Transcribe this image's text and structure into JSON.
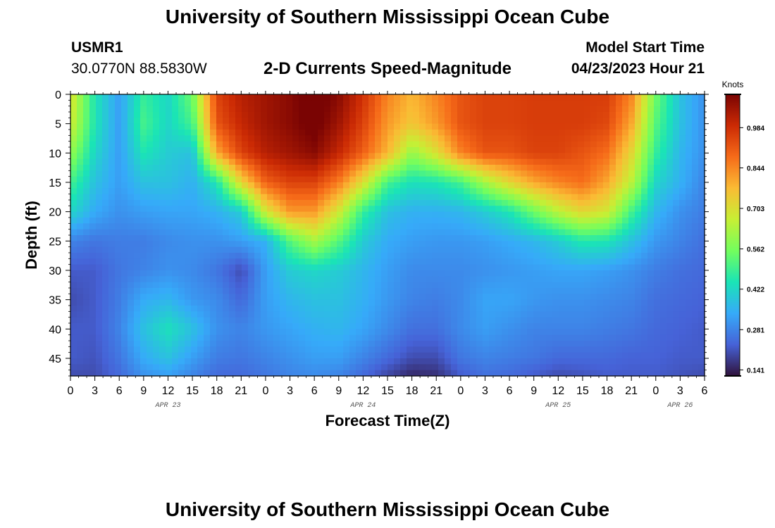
{
  "header": {
    "title": "University of Southern Mississippi Ocean Cube",
    "station_id": "USMR1",
    "station_location": "30.0770N  88.5830W",
    "chart_title": "2-D Currents Speed-Magnitude",
    "start_label": "Model Start Time",
    "start_value": "04/23/2023 Hour 21"
  },
  "footer": {
    "title": "University of Southern Mississippi Ocean Cube"
  },
  "chart_data": {
    "type": "heatmap",
    "title": "2-D Currents Speed-Magnitude",
    "xlabel": "Forecast Time(Z)",
    "ylabel": "Depth (ft)",
    "colorbar_label": "Knots",
    "x_hours_range": [
      0,
      78
    ],
    "ylim": [
      0,
      48
    ],
    "x_tick_labels": [
      "0",
      "3",
      "6",
      "9",
      "12",
      "15",
      "18",
      "21",
      "0",
      "3",
      "6",
      "9",
      "12",
      "15",
      "18",
      "21",
      "0",
      "3",
      "6",
      "9",
      "12",
      "15",
      "18",
      "21",
      "0",
      "3",
      "6"
    ],
    "y_ticks": [
      0,
      5,
      10,
      15,
      20,
      25,
      30,
      35,
      40,
      45
    ],
    "date_labels": [
      {
        "label": "APR 23",
        "hour": 12
      },
      {
        "label": "APR 24",
        "hour": 36
      },
      {
        "label": "APR 25",
        "hour": 60
      },
      {
        "label": "APR 26",
        "hour": 75
      }
    ],
    "colorbar_ticks": [
      0.141,
      0.281,
      0.422,
      0.562,
      0.703,
      0.844,
      0.984
    ],
    "colorbar_range": [
      0.12,
      1.1
    ],
    "colors": [
      "#30123b",
      "#4662d7",
      "#36aaf9",
      "#1ae4b6",
      "#72fe5e",
      "#c7ef34",
      "#fabb34",
      "#f66b19",
      "#cb2a04",
      "#7a0403"
    ],
    "speed_samples": {
      "hours": [
        0,
        3,
        6,
        9,
        12,
        15,
        18,
        21,
        24,
        27,
        30,
        33,
        36,
        39,
        42,
        45,
        48,
        51,
        54,
        57,
        60,
        63,
        66,
        69,
        72,
        75,
        78
      ],
      "depths": [
        0,
        5,
        10,
        15,
        20,
        25,
        30,
        35,
        40,
        45,
        48
      ],
      "values": [
        [
          0.7,
          0.45,
          0.32,
          0.48,
          0.42,
          0.55,
          0.95,
          1.02,
          1.05,
          1.08,
          1.13,
          1.08,
          0.98,
          0.85,
          0.78,
          0.85,
          0.92,
          0.95,
          0.95,
          0.96,
          0.96,
          0.96,
          0.96,
          0.85,
          0.55,
          0.38,
          0.3
        ],
        [
          0.68,
          0.45,
          0.32,
          0.5,
          0.42,
          0.5,
          0.92,
          1.0,
          1.05,
          1.08,
          1.12,
          1.05,
          0.95,
          0.82,
          0.75,
          0.82,
          0.92,
          0.95,
          0.95,
          0.96,
          0.96,
          0.96,
          0.94,
          0.8,
          0.52,
          0.38,
          0.3
        ],
        [
          0.6,
          0.42,
          0.32,
          0.45,
          0.4,
          0.38,
          0.8,
          0.95,
          1.02,
          1.05,
          1.08,
          1.0,
          0.9,
          0.78,
          0.6,
          0.7,
          0.85,
          0.92,
          0.92,
          0.95,
          0.95,
          0.92,
          0.88,
          0.72,
          0.48,
          0.36,
          0.3
        ],
        [
          0.5,
          0.38,
          0.32,
          0.38,
          0.38,
          0.35,
          0.45,
          0.72,
          0.9,
          0.95,
          0.95,
          0.86,
          0.7,
          0.5,
          0.44,
          0.45,
          0.5,
          0.62,
          0.72,
          0.8,
          0.85,
          0.88,
          0.8,
          0.65,
          0.42,
          0.35,
          0.28
        ],
        [
          0.42,
          0.34,
          0.3,
          0.32,
          0.33,
          0.33,
          0.35,
          0.4,
          0.68,
          0.82,
          0.82,
          0.68,
          0.48,
          0.38,
          0.35,
          0.35,
          0.36,
          0.4,
          0.45,
          0.55,
          0.65,
          0.72,
          0.68,
          0.5,
          0.36,
          0.3,
          0.27
        ],
        [
          0.28,
          0.26,
          0.27,
          0.27,
          0.29,
          0.3,
          0.3,
          0.32,
          0.35,
          0.52,
          0.62,
          0.52,
          0.4,
          0.34,
          0.32,
          0.31,
          0.31,
          0.32,
          0.34,
          0.36,
          0.4,
          0.46,
          0.45,
          0.38,
          0.31,
          0.28,
          0.25
        ],
        [
          0.22,
          0.22,
          0.26,
          0.28,
          0.3,
          0.29,
          0.26,
          0.2,
          0.32,
          0.4,
          0.42,
          0.4,
          0.36,
          0.32,
          0.29,
          0.29,
          0.29,
          0.3,
          0.31,
          0.32,
          0.33,
          0.33,
          0.32,
          0.3,
          0.27,
          0.25,
          0.24
        ],
        [
          0.2,
          0.22,
          0.27,
          0.34,
          0.36,
          0.31,
          0.29,
          0.24,
          0.32,
          0.36,
          0.38,
          0.38,
          0.35,
          0.31,
          0.28,
          0.27,
          0.29,
          0.33,
          0.33,
          0.31,
          0.3,
          0.3,
          0.29,
          0.28,
          0.25,
          0.24,
          0.23
        ],
        [
          0.22,
          0.22,
          0.28,
          0.38,
          0.44,
          0.38,
          0.3,
          0.28,
          0.31,
          0.33,
          0.35,
          0.36,
          0.33,
          0.29,
          0.25,
          0.25,
          0.29,
          0.32,
          0.3,
          0.28,
          0.28,
          0.28,
          0.27,
          0.26,
          0.24,
          0.23,
          0.22
        ],
        [
          0.22,
          0.21,
          0.26,
          0.34,
          0.38,
          0.32,
          0.27,
          0.26,
          0.28,
          0.3,
          0.32,
          0.32,
          0.28,
          0.24,
          0.2,
          0.2,
          0.26,
          0.28,
          0.27,
          0.26,
          0.24,
          0.24,
          0.24,
          0.23,
          0.23,
          0.22,
          0.22
        ],
        [
          0.2,
          0.2,
          0.24,
          0.3,
          0.32,
          0.28,
          0.24,
          0.24,
          0.26,
          0.28,
          0.29,
          0.28,
          0.24,
          0.19,
          0.15,
          0.16,
          0.22,
          0.25,
          0.24,
          0.22,
          0.2,
          0.21,
          0.22,
          0.22,
          0.22,
          0.21,
          0.2
        ]
      ]
    }
  }
}
